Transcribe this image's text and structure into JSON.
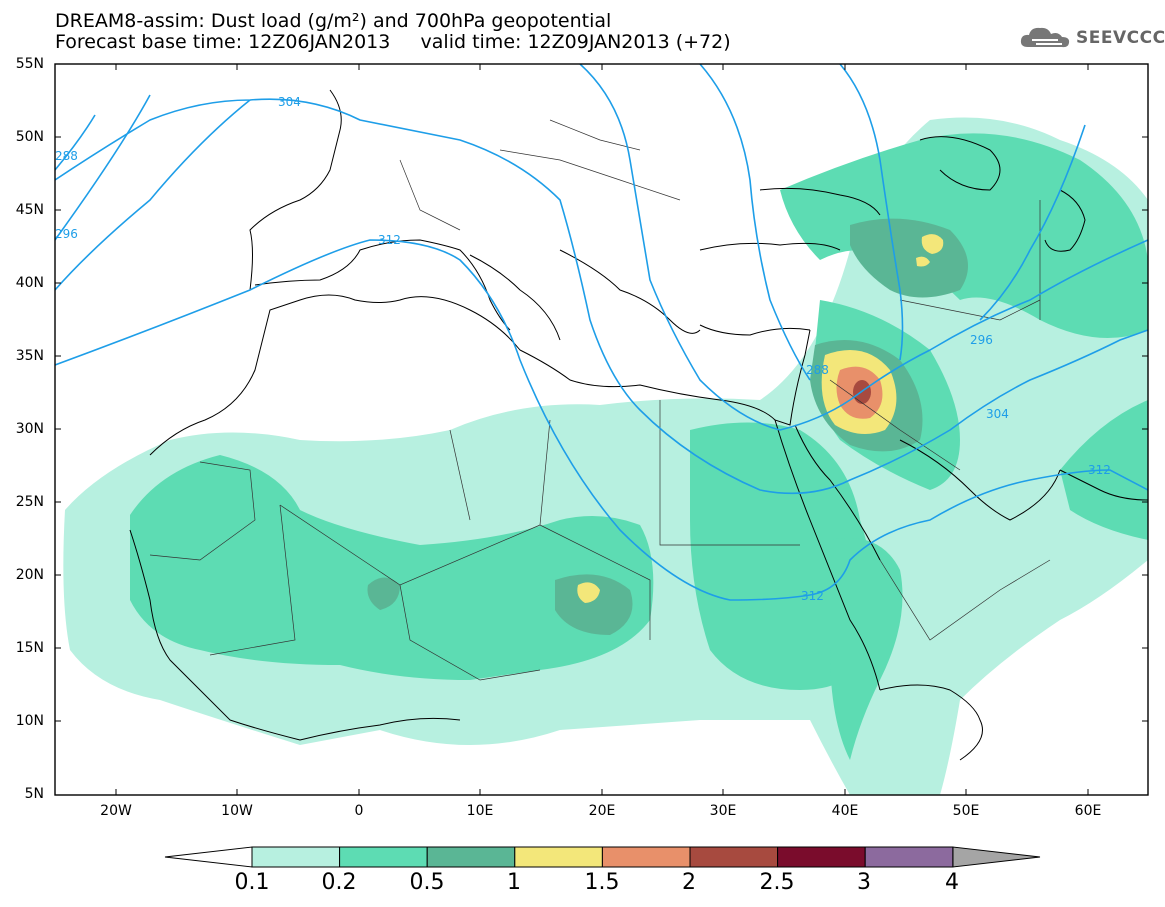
{
  "title": {
    "line1": "DREAM8-assim: Dust load (g/m²) and 700hPa geopotential",
    "line2": "Forecast base time: 12Z06JAN2013     valid time: 12Z09JAN2013 (+72)"
  },
  "logo": {
    "text": "SEEVCCC",
    "icon": "cloud-icon"
  },
  "axes": {
    "lat_labels": [
      "55N",
      "50N",
      "45N",
      "40N",
      "35N",
      "30N",
      "25N",
      "20N",
      "15N",
      "10N",
      "5N"
    ],
    "lon_labels": [
      "20W",
      "10W",
      "0",
      "10E",
      "20E",
      "30E",
      "40E",
      "50E",
      "60E"
    ]
  },
  "contour_labels": [
    "304",
    "312",
    "288",
    "296",
    "288",
    "296",
    "304",
    "312",
    "312"
  ],
  "legend": {
    "levels": [
      "0.1",
      "0.2",
      "0.5",
      "1",
      "1.5",
      "2",
      "2.5",
      "3",
      "4"
    ],
    "colors": [
      "#b7f0e0",
      "#5ddcb3",
      "#5ab695",
      "#f3e77a",
      "#e8906a",
      "#a74a3f",
      "#7a0c2c",
      "#8c6a9e",
      "#a5a5a5"
    ]
  },
  "colors": {
    "light_dust": "#b7f0e0",
    "mid_dust": "#5ddcb3",
    "dark_dust": "#5ab695",
    "yellow": "#f3e77a",
    "orange": "#e8906a",
    "red": "#a74a3f",
    "contour": "#1e9ee8"
  }
}
